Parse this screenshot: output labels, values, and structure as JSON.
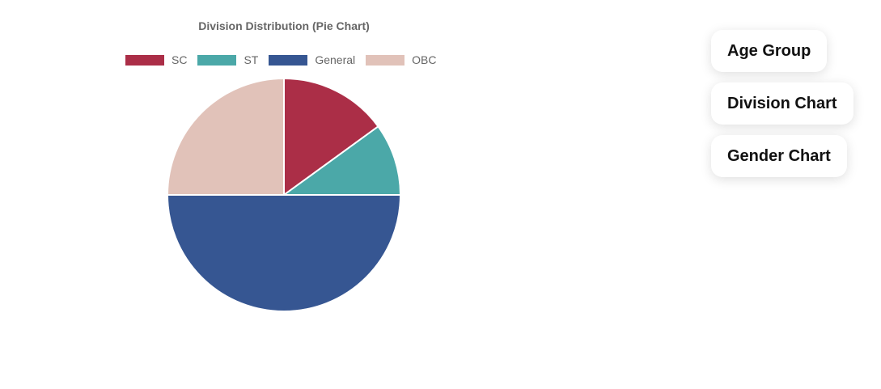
{
  "chart_data": {
    "type": "pie",
    "title": "Division Distribution (Pie Chart)",
    "legend_position": "top",
    "categories": [
      "SC",
      "ST",
      "General",
      "OBC"
    ],
    "values": [
      15,
      10,
      50,
      25
    ],
    "colors": [
      "#ab2e47",
      "#4ba8a8",
      "#365692",
      "#e1c2b9"
    ]
  },
  "buttons": {
    "age_group": "Age Group",
    "division_chart": "Division Chart",
    "gender_chart": "Gender Chart"
  }
}
